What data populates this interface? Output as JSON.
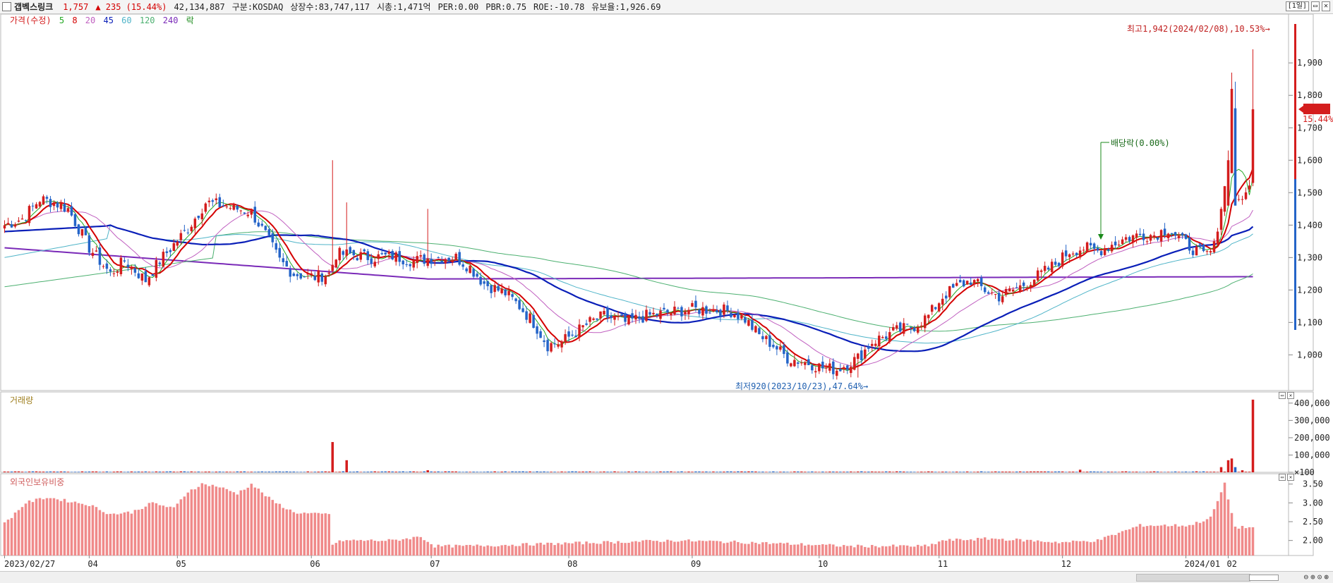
{
  "header": {
    "name": "갭벡스링크",
    "price": "1,757",
    "change": "▲ 235 (15.44%)",
    "volume": "42,134,887",
    "market": "구분:KOSDAQ",
    "shares": "상장수:83,747,117",
    "mcap": "시총:1,471억",
    "per": "PER:0.00",
    "pbr": "PBR:0.75",
    "roe": "ROE:-10.78",
    "float": "유보율:1,926.69",
    "period_button": "[1일]"
  },
  "price_legend": {
    "price": "가격(수정)",
    "ma5": "5",
    "ma8": "8",
    "ma20": "20",
    "ma45": "45",
    "ma60": "60",
    "ma120": "120",
    "ma240": "240",
    "ex": "락"
  },
  "volume_legend": {
    "title": "거래량"
  },
  "foreign_legend": {
    "title": "외국인보유비중"
  },
  "annotations": {
    "high": "최고1,942(2024/02/08),10.53%→",
    "low": "최저920(2023/10/23),47.64%→",
    "dividend": "배당락(0.00%)",
    "last_price": "1,757",
    "last_change": "15.44%"
  },
  "x_labels": [
    "2023/02/27",
    "04",
    "05",
    "06",
    "07",
    "08",
    "09",
    "10",
    "11",
    "12",
    "2024/01",
    "02"
  ],
  "colors": {
    "up": "#d41d1d",
    "down": "#2464c8",
    "ma5": "#22a822",
    "ma8": "#d40000",
    "ma20": "#c060c0",
    "ma45": "#0a1fb8",
    "ma60": "#4fb4c8",
    "ma120": "#4cb070",
    "ma240": "#7a2ab8",
    "foreign": "#f08a8a"
  },
  "chart_data": [
    {
      "type": "candlestick",
      "title": "가격(수정)",
      "ylim": [
        890,
        2020
      ],
      "y_ticks": [
        1000,
        1100,
        1200,
        1300,
        1400,
        1500,
        1600,
        1700,
        1800,
        1900
      ],
      "anchors": [
        [
          0,
          1400
        ],
        [
          5,
          1420
        ],
        [
          10,
          1480
        ],
        [
          14,
          1470
        ],
        [
          18,
          1450
        ],
        [
          24,
          1330
        ],
        [
          30,
          1250
        ],
        [
          34,
          1290
        ],
        [
          40,
          1230
        ],
        [
          44,
          1290
        ],
        [
          52,
          1390
        ],
        [
          57,
          1470
        ],
        [
          62,
          1460
        ],
        [
          66,
          1450
        ],
        [
          70,
          1440
        ],
        [
          74,
          1370
        ],
        [
          78,
          1290
        ],
        [
          82,
          1250
        ],
        [
          88,
          1240
        ],
        [
          92,
          1250
        ],
        [
          94,
          1310
        ],
        [
          98,
          1310
        ],
        [
          104,
          1300
        ],
        [
          110,
          1305
        ],
        [
          116,
          1290
        ],
        [
          122,
          1300
        ],
        [
          128,
          1300
        ],
        [
          132,
          1270
        ],
        [
          136,
          1220
        ],
        [
          142,
          1190
        ],
        [
          146,
          1150
        ],
        [
          150,
          1100
        ],
        [
          154,
          1030
        ],
        [
          158,
          1040
        ],
        [
          162,
          1070
        ],
        [
          166,
          1100
        ],
        [
          170,
          1120
        ],
        [
          176,
          1100
        ],
        [
          182,
          1120
        ],
        [
          188,
          1130
        ],
        [
          194,
          1140
        ],
        [
          200,
          1140
        ],
        [
          206,
          1135
        ],
        [
          210,
          1110
        ],
        [
          214,
          1060
        ],
        [
          218,
          1030
        ],
        [
          222,
          990
        ],
        [
          228,
          975
        ],
        [
          232,
          960
        ],
        [
          236,
          955
        ],
        [
          242,
          990
        ],
        [
          246,
          1040
        ],
        [
          252,
          1070
        ],
        [
          258,
          1090
        ],
        [
          262,
          1120
        ],
        [
          266,
          1180
        ],
        [
          270,
          1210
        ],
        [
          274,
          1230
        ],
        [
          278,
          1200
        ],
        [
          282,
          1180
        ],
        [
          288,
          1210
        ],
        [
          294,
          1250
        ],
        [
          298,
          1280
        ],
        [
          302,
          1320
        ],
        [
          306,
          1330
        ],
        [
          310,
          1320
        ],
        [
          314,
          1340
        ],
        [
          318,
          1360
        ],
        [
          322,
          1370
        ],
        [
          326,
          1370
        ],
        [
          330,
          1390
        ],
        [
          334,
          1350
        ],
        [
          338,
          1320
        ],
        [
          342,
          1320
        ],
        [
          344,
          1380
        ],
        [
          347,
          1590
        ],
        [
          348,
          1790
        ],
        [
          349,
          1480
        ],
        [
          351,
          1480
        ],
        [
          353,
          1522
        ],
        [
          354,
          1757
        ]
      ],
      "spikes": [
        [
          93,
          1600
        ],
        [
          97,
          1470
        ],
        [
          120,
          1450
        ],
        [
          242,
          930
        ]
      ],
      "high": 1942,
      "low": 920,
      "last": 1757,
      "moving_averages": [
        {
          "name": "5"
        },
        {
          "name": "8"
        },
        {
          "name": "20"
        },
        {
          "name": "45"
        },
        {
          "name": "60"
        },
        {
          "name": "120"
        },
        {
          "name": "240"
        }
      ]
    },
    {
      "type": "bar",
      "title": "거래량",
      "y_ticks": [
        100,
        100000,
        200000,
        300000,
        400000
      ],
      "y_tick_labels": [
        "×100",
        "100,000",
        "200,000",
        "300,000",
        "400,000"
      ],
      "ylim": [
        0,
        440000
      ],
      "baseline": 4000,
      "spikes": [
        [
          93,
          175000
        ],
        [
          97,
          70000
        ],
        [
          120,
          12000
        ],
        [
          305,
          15000
        ],
        [
          345,
          30000
        ],
        [
          347,
          70000
        ],
        [
          348,
          80000
        ],
        [
          349,
          30000
        ],
        [
          351,
          12000
        ],
        [
          354,
          420000
        ]
      ]
    },
    {
      "type": "bar",
      "title": "외국인보유비중",
      "y_ticks": [
        2.0,
        2.5,
        3.0,
        3.5
      ],
      "y_tick_labels": [
        "2.00",
        "2.50",
        "3.00",
        "3.50"
      ],
      "ylim": [
        1.6,
        3.7
      ],
      "anchors": [
        [
          0,
          2.45
        ],
        [
          6,
          3.0
        ],
        [
          12,
          3.15
        ],
        [
          18,
          3.05
        ],
        [
          24,
          2.95
        ],
        [
          30,
          2.7
        ],
        [
          36,
          2.75
        ],
        [
          42,
          3.0
        ],
        [
          48,
          2.85
        ],
        [
          52,
          3.3
        ],
        [
          56,
          3.5
        ],
        [
          60,
          3.45
        ],
        [
          66,
          3.25
        ],
        [
          70,
          3.5
        ],
        [
          76,
          3.05
        ],
        [
          82,
          2.75
        ],
        [
          88,
          2.7
        ],
        [
          92,
          2.7
        ],
        [
          93,
          1.9
        ],
        [
          96,
          2.0
        ],
        [
          110,
          2.0
        ],
        [
          118,
          2.1
        ],
        [
          122,
          1.85
        ],
        [
          130,
          1.85
        ],
        [
          150,
          1.9
        ],
        [
          190,
          2.0
        ],
        [
          210,
          1.95
        ],
        [
          240,
          1.85
        ],
        [
          262,
          1.85
        ],
        [
          266,
          2.0
        ],
        [
          280,
          2.05
        ],
        [
          300,
          1.95
        ],
        [
          310,
          2.0
        ],
        [
          316,
          2.2
        ],
        [
          322,
          2.4
        ],
        [
          330,
          2.4
        ],
        [
          336,
          2.4
        ],
        [
          342,
          2.6
        ],
        [
          346,
          3.5
        ],
        [
          349,
          2.35
        ],
        [
          354,
          2.35
        ]
      ]
    }
  ]
}
